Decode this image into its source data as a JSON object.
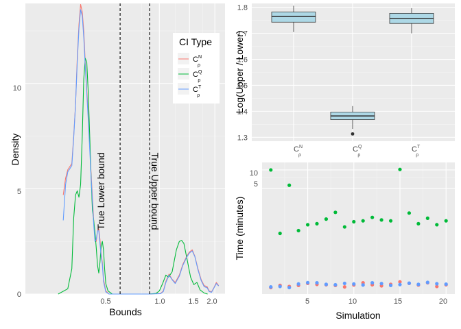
{
  "colors": {
    "panel_bg": "#ebebeb",
    "grid_major": "#ffffff",
    "grid_minor": "#f5f5f5",
    "series": [
      "#f8766d",
      "#00ba38",
      "#619cff"
    ],
    "box_fill": "#add8e6",
    "box_line": "#333333"
  },
  "chart_data": [
    {
      "type": "line",
      "id": "density",
      "xlabel": "Bounds",
      "ylabel": "Density",
      "x_ticks": [
        "0.5",
        "1.0",
        "1.5",
        "2.0"
      ],
      "y_ticks": [
        "0",
        "5",
        "10"
      ],
      "ylim": [
        0,
        13.8
      ],
      "grid": true,
      "legend": {
        "title": "CI Type",
        "placement": "right-inside",
        "entries": [
          {
            "base": "C",
            "sup": "N",
            "sub": "ρ"
          },
          {
            "base": "C",
            "sup": "Q",
            "sub": "ρ"
          },
          {
            "base": "C",
            "sup": "T",
            "sub": "ρ"
          }
        ]
      },
      "vlines": [
        {
          "x": 0.5,
          "label": "True Lower bound",
          "style": "dashed"
        },
        {
          "x": 0.86,
          "label": "True Upper bound",
          "style": "dashed"
        }
      ],
      "series": [
        {
          "points": [
            [
              0.08,
              4.7
            ],
            [
              0.09,
              5.5
            ],
            [
              0.1,
              5.9
            ],
            [
              0.12,
              6.2
            ],
            [
              0.13,
              7.5
            ],
            [
              0.14,
              9.0
            ],
            [
              0.15,
              11.2
            ],
            [
              0.16,
              12.8
            ],
            [
              0.17,
              13.75
            ],
            [
              0.18,
              13.4
            ],
            [
              0.19,
              12.5
            ],
            [
              0.2,
              11.0
            ],
            [
              0.22,
              8.5
            ],
            [
              0.24,
              5.8
            ],
            [
              0.26,
              3.5
            ],
            [
              0.27,
              2.6
            ],
            [
              0.28,
              2.5
            ],
            [
              0.29,
              3.0
            ],
            [
              0.3,
              3.1
            ],
            [
              0.31,
              2.6
            ],
            [
              0.32,
              1.9
            ],
            [
              0.33,
              1.5
            ],
            [
              0.34,
              0.7
            ],
            [
              0.36,
              0.15
            ],
            [
              0.39,
              0.0
            ],
            [
              0.85,
              0.0
            ],
            [
              1.02,
              0.03
            ],
            [
              1.06,
              0.15
            ],
            [
              1.1,
              0.6
            ],
            [
              1.15,
              0.95
            ],
            [
              1.2,
              0.7
            ],
            [
              1.25,
              0.55
            ],
            [
              1.32,
              0.9
            ],
            [
              1.38,
              1.4
            ],
            [
              1.45,
              1.8
            ],
            [
              1.5,
              2.0
            ],
            [
              1.55,
              2.1
            ],
            [
              1.6,
              1.8
            ],
            [
              1.66,
              1.2
            ],
            [
              1.72,
              0.7
            ],
            [
              1.78,
              0.4
            ],
            [
              1.84,
              0.35
            ],
            [
              1.88,
              0.15
            ],
            [
              1.93,
              0.1
            ],
            [
              1.98,
              0.3
            ],
            [
              2.03,
              0.55
            ],
            [
              2.08,
              0.4
            ]
          ]
        },
        {
          "points": [
            [
              0.06,
              0.0
            ],
            [
              0.1,
              0.25
            ],
            [
              0.12,
              1.2
            ],
            [
              0.13,
              3.6
            ],
            [
              0.14,
              4.7
            ],
            [
              0.15,
              4.9
            ],
            [
              0.16,
              4.6
            ],
            [
              0.17,
              5.2
            ],
            [
              0.18,
              7.5
            ],
            [
              0.19,
              10.2
            ],
            [
              0.2,
              11.2
            ],
            [
              0.21,
              11.0
            ],
            [
              0.22,
              9.6
            ],
            [
              0.23,
              7.6
            ],
            [
              0.24,
              5.6
            ],
            [
              0.25,
              4.0
            ],
            [
              0.26,
              3.5
            ],
            [
              0.27,
              2.9
            ],
            [
              0.28,
              2.2
            ],
            [
              0.29,
              1.35
            ],
            [
              0.3,
              1.0
            ],
            [
              0.31,
              1.5
            ],
            [
              0.32,
              2.3
            ],
            [
              0.33,
              2.5
            ],
            [
              0.34,
              2.1
            ],
            [
              0.35,
              1.2
            ],
            [
              0.36,
              0.5
            ],
            [
              0.38,
              0.15
            ],
            [
              0.42,
              0.0
            ],
            [
              0.85,
              0.0
            ],
            [
              0.95,
              0.03
            ],
            [
              1.0,
              0.15
            ],
            [
              1.05,
              0.5
            ],
            [
              1.1,
              0.9
            ],
            [
              1.14,
              0.8
            ],
            [
              1.2,
              1.05
            ],
            [
              1.27,
              2.1
            ],
            [
              1.32,
              2.5
            ],
            [
              1.36,
              2.55
            ],
            [
              1.4,
              2.4
            ],
            [
              1.46,
              1.6
            ],
            [
              1.52,
              0.8
            ],
            [
              1.58,
              0.45
            ],
            [
              1.64,
              0.55
            ],
            [
              1.7,
              0.2
            ],
            [
              1.78,
              0.05
            ],
            [
              1.85,
              0.0
            ]
          ]
        },
        {
          "points": [
            [
              0.08,
              3.5
            ],
            [
              0.09,
              5.2
            ],
            [
              0.1,
              5.8
            ],
            [
              0.12,
              6.1
            ],
            [
              0.13,
              7.4
            ],
            [
              0.14,
              9.0
            ],
            [
              0.15,
              11.0
            ],
            [
              0.16,
              12.6
            ],
            [
              0.17,
              13.5
            ],
            [
              0.18,
              13.2
            ],
            [
              0.19,
              12.2
            ],
            [
              0.2,
              10.8
            ],
            [
              0.22,
              8.3
            ],
            [
              0.24,
              5.6
            ],
            [
              0.26,
              3.3
            ],
            [
              0.27,
              2.5
            ],
            [
              0.28,
              2.6
            ],
            [
              0.29,
              3.0
            ],
            [
              0.3,
              3.0
            ],
            [
              0.31,
              2.4
            ],
            [
              0.32,
              1.8
            ],
            [
              0.33,
              1.4
            ],
            [
              0.34,
              0.6
            ],
            [
              0.36,
              0.1
            ],
            [
              0.39,
              0.0
            ],
            [
              0.85,
              0.0
            ],
            [
              1.02,
              0.02
            ],
            [
              1.06,
              0.12
            ],
            [
              1.1,
              0.55
            ],
            [
              1.15,
              0.9
            ],
            [
              1.2,
              0.68
            ],
            [
              1.25,
              0.5
            ],
            [
              1.32,
              0.85
            ],
            [
              1.38,
              1.35
            ],
            [
              1.45,
              1.75
            ],
            [
              1.5,
              1.95
            ],
            [
              1.55,
              2.05
            ],
            [
              1.6,
              1.78
            ],
            [
              1.66,
              1.15
            ],
            [
              1.72,
              0.65
            ],
            [
              1.78,
              0.35
            ],
            [
              1.84,
              0.3
            ],
            [
              1.88,
              0.12
            ],
            [
              1.93,
              0.08
            ],
            [
              1.98,
              0.28
            ],
            [
              2.03,
              0.5
            ],
            [
              2.08,
              0.38
            ]
          ]
        }
      ]
    },
    {
      "type": "box",
      "id": "boxplot",
      "ylabel": "Log(Upper / Lower)",
      "y_ticks": [
        "1.3",
        "1.4",
        "1.5",
        "1.6",
        "1.7",
        "1.8"
      ],
      "ylim": [
        1.285,
        1.815
      ],
      "grid": true,
      "categories": [
        {
          "base": "C",
          "sup": "N",
          "sub": "ρ"
        },
        {
          "base": "C",
          "sup": "Q",
          "sub": "ρ"
        },
        {
          "base": "C",
          "sup": "T",
          "sub": "ρ"
        }
      ],
      "boxes": [
        {
          "whisker_low": 1.705,
          "q1": 1.743,
          "median": 1.765,
          "q3": 1.782,
          "whisker_high": 1.806,
          "outliers": []
        },
        {
          "whisker_low": 1.332,
          "q1": 1.368,
          "median": 1.382,
          "q3": 1.397,
          "whisker_high": 1.42,
          "outliers": [
            1.313
          ]
        },
        {
          "whisker_low": 1.7,
          "q1": 1.738,
          "median": 1.757,
          "q3": 1.777,
          "whisker_high": 1.797,
          "outliers": []
        }
      ]
    },
    {
      "type": "scatter",
      "id": "time",
      "xlabel": "Simulation",
      "ylabel": "Time (minutes)",
      "x_ticks": [
        "5",
        "10",
        "15",
        "20"
      ],
      "y_ticks": [
        "5",
        "10"
      ],
      "xlim": [
        0.05,
        20.95
      ],
      "ylim": [
        0.09,
        13.3
      ],
      "scale": "log",
      "grid": true,
      "series": [
        {
          "values": [
            0.115,
            0.125,
            0.12,
            0.125,
            0.135,
            0.13,
            0.128,
            0.125,
            0.118,
            0.127,
            0.138,
            0.128,
            0.123,
            0.13,
            0.143,
            0.135,
            0.127,
            0.138,
            0.12,
            0.128
          ]
        },
        {
          "values": [
            10.0,
            0.9,
            5.6,
            1.0,
            1.25,
            1.3,
            1.55,
            2.0,
            1.15,
            1.4,
            1.45,
            1.65,
            1.5,
            1.45,
            10.2,
            1.95,
            1.3,
            1.6,
            1.25,
            1.45
          ]
        },
        {
          "values": [
            0.118,
            0.12,
            0.115,
            0.132,
            0.139,
            0.138,
            0.13,
            0.128,
            0.135,
            0.132,
            0.127,
            0.138,
            0.134,
            0.125,
            0.129,
            0.136,
            0.13,
            0.14,
            0.133,
            0.131
          ]
        }
      ]
    }
  ]
}
